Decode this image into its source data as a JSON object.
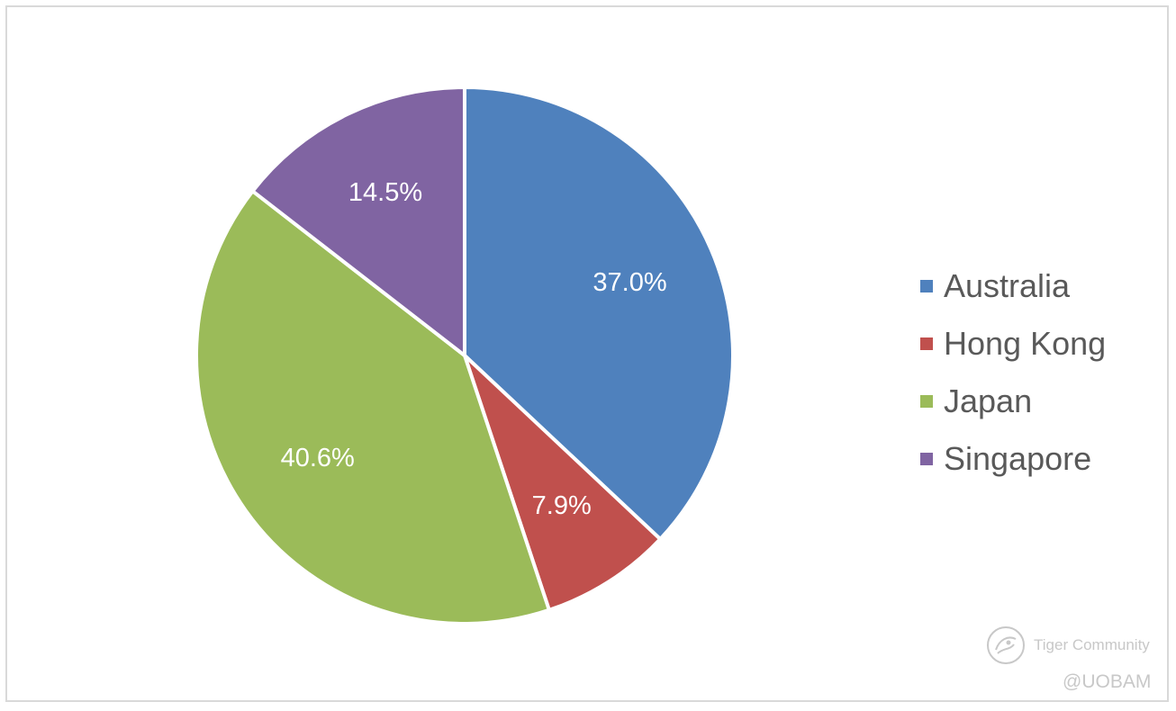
{
  "chart_data": {
    "type": "pie",
    "title": "",
    "slices": [
      {
        "name": "Australia",
        "value": 37.0,
        "label": "37.0%",
        "color": "#4f81bd"
      },
      {
        "name": "Hong Kong",
        "value": 7.9,
        "label": "7.9%",
        "color": "#c0504d"
      },
      {
        "name": "Japan",
        "value": 40.6,
        "label": "40.6%",
        "color": "#9bbb59"
      },
      {
        "name": "Singapore",
        "value": 14.5,
        "label": "14.5%",
        "color": "#8064a2"
      }
    ],
    "start": "12 o'clock",
    "direction": "clockwise",
    "legend_position": "right"
  },
  "watermark": {
    "brand": "Tiger Community",
    "handle": "@UOBAM",
    "icon": "tiger-community-logo"
  }
}
